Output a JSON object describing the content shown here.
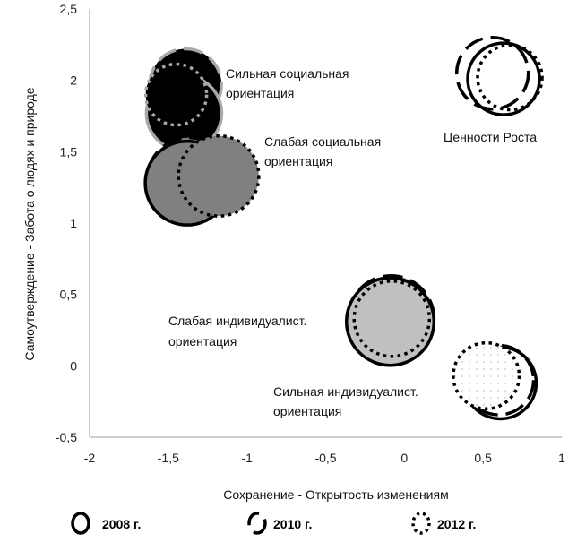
{
  "chart_data": {
    "type": "bubble",
    "title": "",
    "xlabel": "Сохранение - Открытость изменениям",
    "ylabel": "Самоутверждение - Забота о людях и природе",
    "xlim": [
      -2,
      1
    ],
    "ylim": [
      -0.5,
      2.5
    ],
    "xticks": [
      "-2",
      "-1,5",
      "-1",
      "-0,5",
      "0",
      "0,5",
      "1"
    ],
    "xtick_values": [
      -2,
      -1.5,
      -1,
      -0.5,
      0,
      0.5,
      1
    ],
    "yticks": [
      "-0,5",
      "0",
      "0,5",
      "1",
      "1,5",
      "2",
      "2,5"
    ],
    "ytick_values": [
      -0.5,
      0,
      0.5,
      1,
      1.5,
      2,
      2.5
    ],
    "grid": false,
    "legend_position": "bottom",
    "legend": [
      {
        "year": "2008",
        "label": "2008 г.",
        "style": "solid"
      },
      {
        "year": "2010",
        "label": "2010 г.",
        "style": "dashed"
      },
      {
        "year": "2012",
        "label": "2012 г.",
        "style": "dotted"
      }
    ],
    "groups": [
      {
        "id": "strong-social",
        "label_lines": [
          "Сильная социальная",
          "ориентация"
        ],
        "fill": "#000000",
        "stroke": "#a8a8a8",
        "points": {
          "2008": {
            "x": -1.4,
            "y": 1.77,
            "size": 1.05
          },
          "2010": {
            "x": -1.39,
            "y": 1.97,
            "size": 1.0
          },
          "2012": {
            "x": -1.45,
            "y": 1.9,
            "size": 0.85
          }
        }
      },
      {
        "id": "weak-social",
        "label_lines": [
          "Слабая социальная",
          "ориентация"
        ],
        "fill": "#808080",
        "stroke": "#000000",
        "points": {
          "2008": {
            "x": -1.38,
            "y": 1.28,
            "size": 1.17
          },
          "2010": {
            "x": -1.37,
            "y": 1.31,
            "size": 1.15
          },
          "2012": {
            "x": -1.18,
            "y": 1.33,
            "size": 1.12
          }
        }
      },
      {
        "id": "growth",
        "label_lines": [
          "Ценности Роста"
        ],
        "fill": "none",
        "stroke": "#000000",
        "points": {
          "2008": {
            "x": 0.63,
            "y": 2.01,
            "size": 1.0
          },
          "2010": {
            "x": 0.56,
            "y": 2.05,
            "size": 1.0
          },
          "2012": {
            "x": 0.67,
            "y": 2.02,
            "size": 0.9
          }
        }
      },
      {
        "id": "weak-individualist",
        "label_lines": [
          "Слабая индивидуалист.",
          "ориентация"
        ],
        "fill": "#c0c0c0",
        "stroke": "#000000",
        "points": {
          "2008": {
            "x": -0.09,
            "y": 0.31,
            "size": 1.22
          },
          "2010": {
            "x": -0.085,
            "y": 0.33,
            "size": 1.2
          },
          "2012": {
            "x": -0.08,
            "y": 0.33,
            "size": 1.05
          }
        }
      },
      {
        "id": "strong-individualist",
        "label_lines": [
          "Сильная индивидуалист.",
          "ориентация"
        ],
        "fill": "#ffffff",
        "stroke": "#000000",
        "points": {
          "2008": {
            "x": 0.61,
            "y": -0.12,
            "size": 1.0
          },
          "2010": {
            "x": 0.6,
            "y": -0.1,
            "size": 0.97
          },
          "2012": {
            "x": 0.52,
            "y": -0.07,
            "size": 0.92
          }
        }
      }
    ]
  }
}
